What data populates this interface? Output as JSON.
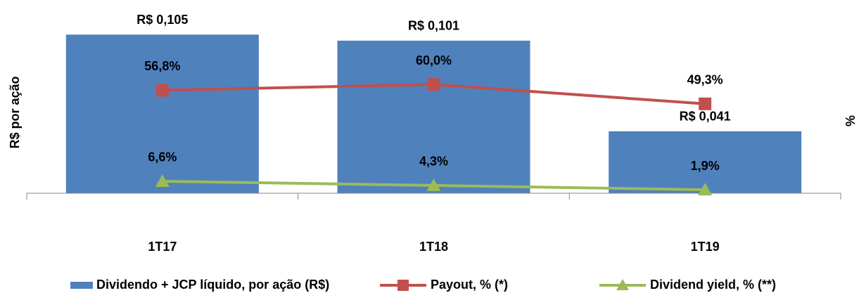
{
  "chart_data": {
    "type": "bar",
    "y_label": "R$ por ação",
    "y2_label": "%",
    "categories": [
      "1T17",
      "1T18",
      "1T19"
    ],
    "series": [
      {
        "name": "Dividendo + JCP líquido, por ação (R$)",
        "type": "bar",
        "axis": "y",
        "color": "#4f81bd",
        "values": [
          0.105,
          0.101,
          0.041
        ],
        "value_labels": [
          "R$ 0,105",
          "R$ 0,101",
          "R$ 0,041"
        ]
      },
      {
        "name": "Payout, % (*)",
        "type": "line",
        "axis": "y2",
        "color": "#c0504d",
        "marker": "square",
        "values": [
          56.8,
          60.0,
          49.3
        ],
        "value_labels": [
          "56,8%",
          "60,0%",
          "49,3%"
        ]
      },
      {
        "name": "Dividend yield, % (**)",
        "type": "line",
        "axis": "y2",
        "color": "#9bbb59",
        "marker": "triangle",
        "values": [
          6.6,
          4.3,
          1.9
        ],
        "value_labels": [
          "6,6%",
          "4,3%",
          "1,9%"
        ]
      }
    ],
    "ylim": [
      0,
      0.12
    ],
    "y2lim": [
      0,
      100
    ],
    "grid": false,
    "legend": "bottom"
  }
}
